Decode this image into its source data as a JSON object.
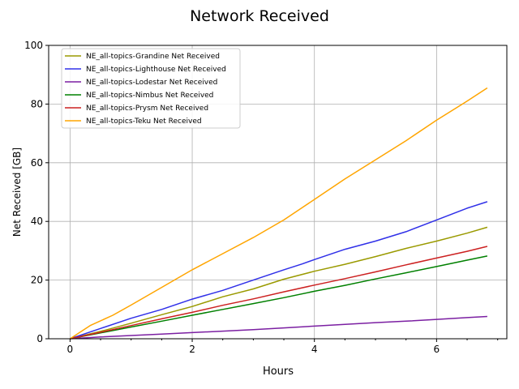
{
  "chart_data": {
    "type": "line",
    "title": "Network Received",
    "xlabel": "Hours",
    "ylabel": "Net Received [GB]",
    "xlim": [
      -0.35,
      7.15
    ],
    "ylim": [
      0,
      100
    ],
    "xticks": [
      0,
      2,
      4,
      6
    ],
    "xticks_minor": [
      0.5,
      1,
      1.5,
      2.5,
      3,
      3.5,
      4.5,
      5,
      5.5,
      6.5,
      7
    ],
    "yticks": [
      0,
      20,
      40,
      60,
      80,
      100
    ],
    "grid": true,
    "legend_position": "top-left",
    "series": [
      {
        "name": "NE_all-topics-Grandine Net Received",
        "color": "#9a9a00",
        "points": [
          [
            0,
            0
          ],
          [
            0.5,
            2.5
          ],
          [
            1.0,
            5.3
          ],
          [
            1.5,
            8.2
          ],
          [
            2.0,
            11.0
          ],
          [
            2.5,
            14.3
          ],
          [
            3.0,
            17.0
          ],
          [
            3.5,
            20.3
          ],
          [
            4.0,
            23.0
          ],
          [
            4.5,
            25.4
          ],
          [
            5.0,
            28.0
          ],
          [
            5.5,
            30.8
          ],
          [
            6.0,
            33.3
          ],
          [
            6.5,
            36.0
          ],
          [
            6.83,
            38.0
          ]
        ]
      },
      {
        "name": "NE_all-topics-Lighthouse Net Received",
        "color": "#3030e8",
        "points": [
          [
            0,
            0
          ],
          [
            0.5,
            3.5
          ],
          [
            1.0,
            7.0
          ],
          [
            1.5,
            10.0
          ],
          [
            2.0,
            13.5
          ],
          [
            2.5,
            16.5
          ],
          [
            3.0,
            20.0
          ],
          [
            3.5,
            23.5
          ],
          [
            3.8,
            25.5
          ],
          [
            4.0,
            27.0
          ],
          [
            4.5,
            30.5
          ],
          [
            5.0,
            33.3
          ],
          [
            5.5,
            36.5
          ],
          [
            6.0,
            40.5
          ],
          [
            6.5,
            44.5
          ],
          [
            6.83,
            46.7
          ]
        ]
      },
      {
        "name": "NE_all-topics-Lodestar Net Received",
        "color": "#7b1fa2",
        "points": [
          [
            0,
            0
          ],
          [
            0.5,
            0.6
          ],
          [
            1.0,
            1.1
          ],
          [
            1.5,
            1.6
          ],
          [
            2.0,
            2.1
          ],
          [
            2.5,
            2.6
          ],
          [
            3.0,
            3.1
          ],
          [
            3.5,
            3.7
          ],
          [
            4.0,
            4.3
          ],
          [
            4.5,
            4.9
          ],
          [
            5.0,
            5.5
          ],
          [
            5.5,
            6.0
          ],
          [
            6.0,
            6.6
          ],
          [
            6.5,
            7.2
          ],
          [
            6.83,
            7.6
          ]
        ]
      },
      {
        "name": "NE_all-topics-Nimbus Net Received",
        "color": "#008000",
        "points": [
          [
            0,
            0
          ],
          [
            0.5,
            2.0
          ],
          [
            1.0,
            4.0
          ],
          [
            1.5,
            6.0
          ],
          [
            2.0,
            8.0
          ],
          [
            2.5,
            10.0
          ],
          [
            3.0,
            12.0
          ],
          [
            3.5,
            14.0
          ],
          [
            4.0,
            16.2
          ],
          [
            4.5,
            18.2
          ],
          [
            5.0,
            20.4
          ],
          [
            5.5,
            22.5
          ],
          [
            6.0,
            24.6
          ],
          [
            6.5,
            26.8
          ],
          [
            6.83,
            28.2
          ]
        ]
      },
      {
        "name": "NE_all-topics-Prysm Net Received",
        "color": "#cc2020",
        "points": [
          [
            0,
            0
          ],
          [
            0.5,
            2.2
          ],
          [
            1.0,
            4.5
          ],
          [
            1.5,
            6.8
          ],
          [
            2.0,
            9.0
          ],
          [
            2.5,
            11.4
          ],
          [
            3.0,
            13.6
          ],
          [
            3.5,
            16.0
          ],
          [
            4.0,
            18.3
          ],
          [
            4.5,
            20.5
          ],
          [
            5.0,
            22.8
          ],
          [
            5.5,
            25.2
          ],
          [
            6.0,
            27.5
          ],
          [
            6.5,
            29.8
          ],
          [
            6.83,
            31.5
          ]
        ]
      },
      {
        "name": "NE_all-topics-Teku Net Received",
        "color": "#ffa500",
        "points": [
          [
            0,
            0
          ],
          [
            0.33,
            4.5
          ],
          [
            0.7,
            8.0
          ],
          [
            1.0,
            11.5
          ],
          [
            1.5,
            17.5
          ],
          [
            2.0,
            23.5
          ],
          [
            2.5,
            29.0
          ],
          [
            3.0,
            34.5
          ],
          [
            3.5,
            40.5
          ],
          [
            4.0,
            47.5
          ],
          [
            4.5,
            54.5
          ],
          [
            5.0,
            61.0
          ],
          [
            5.5,
            67.5
          ],
          [
            6.0,
            74.5
          ],
          [
            6.5,
            81.0
          ],
          [
            6.83,
            85.5
          ]
        ]
      }
    ]
  }
}
